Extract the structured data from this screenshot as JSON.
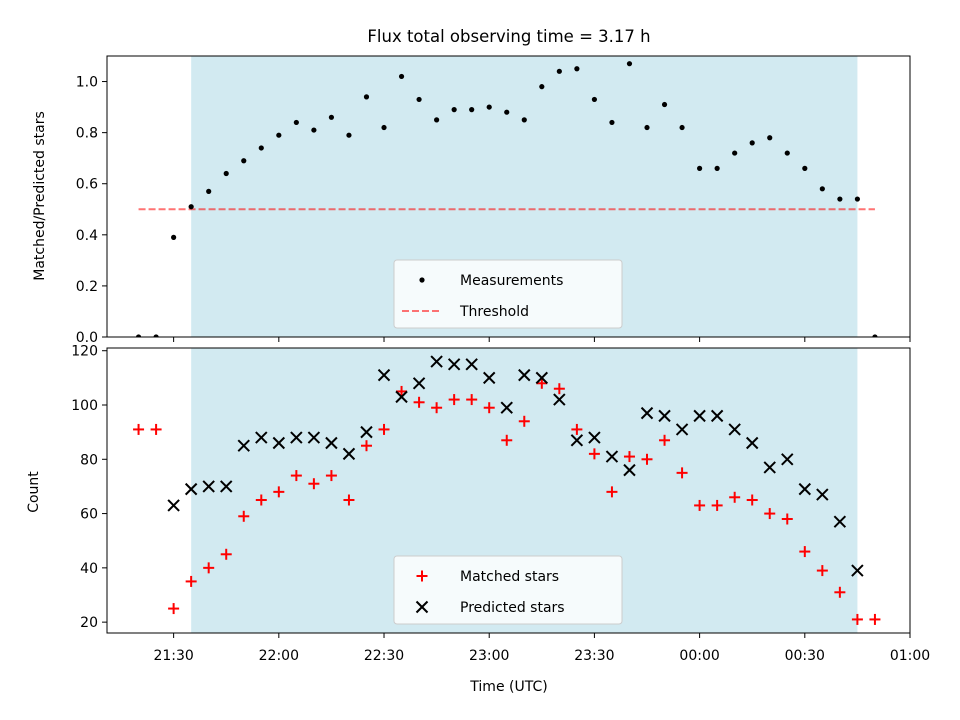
{
  "title": "Flux total observing time = 3.17 h",
  "colors": {
    "shade": "#add8e6",
    "measurement": "#000000",
    "threshold": "#ff0000",
    "matched": "#ff0000",
    "predicted": "#000000"
  },
  "x_ticks": [
    "21:30",
    "22:00",
    "22:30",
    "23:00",
    "23:30",
    "00:00",
    "00:30",
    "01:00"
  ],
  "chart_data": [
    {
      "type": "scatter",
      "ylabel": "Matched/Predicted stars",
      "ylim": [
        0,
        1.1
      ],
      "yticks": [
        "0.0",
        "0.2",
        "0.4",
        "0.6",
        "0.8",
        "1.0"
      ],
      "xlim": [
        "21:11",
        "01:00"
      ],
      "observing_window": [
        "21:35",
        "00:45"
      ],
      "legend": {
        "placement": "lower-center",
        "entries": [
          "Measurements",
          "Threshold"
        ]
      },
      "threshold": {
        "name": "Threshold",
        "y": 0.5,
        "x_range": [
          "21:20",
          "00:50"
        ]
      },
      "series": [
        {
          "name": "Measurements",
          "x": [
            "21:20",
            "21:25",
            "21:30",
            "21:35",
            "21:40",
            "21:45",
            "21:50",
            "21:55",
            "22:00",
            "22:05",
            "22:10",
            "22:15",
            "22:20",
            "22:25",
            "22:30",
            "22:35",
            "22:40",
            "22:45",
            "22:50",
            "22:55",
            "23:00",
            "23:05",
            "23:10",
            "23:15",
            "23:20",
            "23:25",
            "23:30",
            "23:35",
            "23:40",
            "23:45",
            "23:50",
            "23:55",
            "00:00",
            "00:05",
            "00:10",
            "00:15",
            "00:20",
            "00:25",
            "00:30",
            "00:35",
            "00:40",
            "00:45",
            "00:50"
          ],
          "values": [
            0.0,
            0.0,
            0.39,
            0.51,
            0.57,
            0.64,
            0.69,
            0.74,
            0.79,
            0.84,
            0.81,
            0.86,
            0.79,
            0.94,
            0.82,
            1.02,
            0.93,
            0.85,
            0.89,
            0.89,
            0.9,
            0.88,
            0.85,
            0.98,
            1.04,
            1.05,
            0.93,
            0.84,
            1.07,
            0.82,
            0.91,
            0.82,
            0.66,
            0.66,
            0.72,
            0.76,
            0.78,
            0.72,
            0.66,
            0.58,
            0.54,
            0.54,
            0.0
          ]
        }
      ]
    },
    {
      "type": "scatter",
      "xlabel": "Time (UTC)",
      "ylabel": "Count",
      "ylim": [
        16,
        121
      ],
      "yticks": [
        "20",
        "40",
        "60",
        "80",
        "100",
        "120"
      ],
      "xlim": [
        "21:11",
        "01:00"
      ],
      "observing_window": [
        "21:35",
        "00:45"
      ],
      "legend": {
        "placement": "lower-center",
        "entries": [
          "Matched stars",
          "Predicted stars"
        ]
      },
      "series": [
        {
          "name": "Matched stars",
          "marker": "+",
          "x": [
            "21:20",
            "21:25",
            "21:30",
            "21:35",
            "21:40",
            "21:45",
            "21:50",
            "21:55",
            "22:00",
            "22:05",
            "22:10",
            "22:15",
            "22:20",
            "22:25",
            "22:30",
            "22:35",
            "22:40",
            "22:45",
            "22:50",
            "22:55",
            "23:00",
            "23:05",
            "23:10",
            "23:15",
            "23:20",
            "23:25",
            "23:30",
            "23:35",
            "23:40",
            "23:45",
            "23:50",
            "23:55",
            "00:00",
            "00:05",
            "00:10",
            "00:15",
            "00:20",
            "00:25",
            "00:30",
            "00:35",
            "00:40",
            "00:45",
            "00:50"
          ],
          "values": [
            91,
            91,
            25,
            35,
            40,
            45,
            59,
            65,
            68,
            74,
            71,
            74,
            65,
            85,
            91,
            105,
            101,
            99,
            102,
            102,
            99,
            87,
            94,
            108,
            106,
            91,
            82,
            68,
            81,
            80,
            87,
            75,
            63,
            63,
            66,
            65,
            60,
            58,
            46,
            39,
            31,
            21,
            21
          ]
        },
        {
          "name": "Predicted stars",
          "marker": "x",
          "x": [
            "21:30",
            "21:35",
            "21:40",
            "21:45",
            "21:50",
            "21:55",
            "22:00",
            "22:05",
            "22:10",
            "22:15",
            "22:20",
            "22:25",
            "22:30",
            "22:35",
            "22:40",
            "22:45",
            "22:50",
            "22:55",
            "23:00",
            "23:05",
            "23:10",
            "23:15",
            "23:20",
            "23:25",
            "23:30",
            "23:35",
            "23:40",
            "23:45",
            "23:50",
            "23:55",
            "00:00",
            "00:05",
            "00:10",
            "00:15",
            "00:20",
            "00:25",
            "00:30",
            "00:35",
            "00:40",
            "00:45"
          ],
          "values": [
            63,
            69,
            70,
            70,
            85,
            88,
            86,
            88,
            88,
            86,
            82,
            90,
            111,
            103,
            108,
            116,
            115,
            115,
            110,
            99,
            111,
            110,
            102,
            87,
            88,
            81,
            76,
            97,
            96,
            91,
            96,
            96,
            91,
            86,
            77,
            80,
            69,
            67,
            57,
            39
          ]
        }
      ]
    }
  ]
}
